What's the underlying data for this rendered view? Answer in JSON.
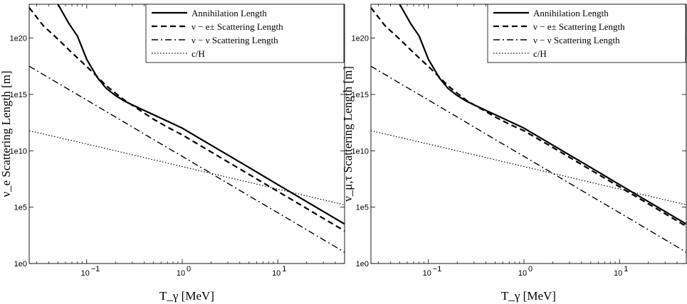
{
  "chart_data": [
    {
      "type": "line",
      "xlabel": "T_γ [MeV]",
      "ylabel": "ν_e Scattering Length [m]",
      "x_scale": "log",
      "y_scale": "log",
      "xlim": [
        0.025,
        50
      ],
      "ylim": [
        1,
        1e+23
      ],
      "x_ticks": [
        {
          "v": 0.1,
          "m": "10",
          "e": "−1"
        },
        {
          "v": 1,
          "m": "10",
          "e": "0"
        },
        {
          "v": 10,
          "m": "10",
          "e": "1"
        }
      ],
      "y_ticks": [
        {
          "v": 1,
          "label": "1e0"
        },
        {
          "v": 100000.0,
          "label": "1e5"
        },
        {
          "v": 10000000000.0,
          "label": "1e10"
        },
        {
          "v": 1000000000000000.0,
          "label": "1e15"
        },
        {
          "v": 1e+20,
          "label": "1e20"
        }
      ],
      "legend_position": "top-right",
      "series": [
        {
          "name": "Annihilation Length",
          "style": "solid",
          "x": [
            0.04,
            0.05,
            0.065,
            0.08,
            0.1,
            0.13,
            0.16,
            0.2,
            0.25,
            0.3,
            0.4,
            0.5,
            0.7,
            1,
            2,
            5,
            10,
            20,
            50
          ],
          "y": [
            1.1e+24,
            1e+23,
            2e+21,
            1.5e+20,
            1.3e+18,
            3e+16,
            3500000000000000.0,
            800000000000000.0,
            250000000000000.0,
            120000000000000.0,
            38000000000000.0,
            16000000000000.0,
            4200000000000.0,
            1020000000000.0,
            32000000000.0,
            330000000.0,
            10000000.0,
            310000.0,
            3200.0
          ]
        },
        {
          "name": "ν − e± Scattering Length",
          "style": "dashed",
          "x": [
            0.025,
            0.035,
            0.05,
            0.07,
            0.1,
            0.13,
            0.16,
            0.2,
            0.25,
            0.3,
            0.4,
            0.5,
            0.7,
            1,
            2,
            5,
            10,
            20,
            50
          ],
          "y": [
            5e+22,
            1.3e+21,
            8e+19,
            5e+18,
            3e+17,
            3.5e+16,
            6000000000000000.0,
            1300000000000000.0,
            300000000000000.0,
            110000000000000.0,
            22000000000000.0,
            6300000000000.0,
            1250000000000.0,
            260000000000.0,
            8000000000.0,
            80000000.0,
            2500000.0,
            77000.0,
            780.0
          ]
        },
        {
          "name": "ν − ν Scattering Length",
          "style": "dashdot",
          "x": [
            0.025,
            0.05,
            0.1,
            0.2,
            0.5,
            1,
            2,
            5,
            10,
            20,
            50
          ],
          "y": [
            3.2e+17,
            1e+16,
            320000000000000.0,
            10000000000000.0,
            100000000000.0,
            3200000000.0,
            100000000.0,
            1000000.0,
            32000.0,
            1000.0,
            10.0
          ]
        },
        {
          "name": "c/H",
          "style": "dotted",
          "x": [
            0.025,
            0.1,
            1,
            10,
            50
          ],
          "y": [
            600000000000.0,
            40000000000.0,
            400000000.0,
            4000000.0,
            160000.0
          ]
        }
      ]
    },
    {
      "type": "line",
      "xlabel": "T_γ [MeV]",
      "ylabel": "ν_μ,τ Scattering Length [m]",
      "x_scale": "log",
      "y_scale": "log",
      "xlim": [
        0.025,
        50
      ],
      "ylim": [
        1,
        1e+23
      ],
      "x_ticks": [
        {
          "v": 0.1,
          "m": "10",
          "e": "−1"
        },
        {
          "v": 1,
          "m": "10",
          "e": "0"
        },
        {
          "v": 10,
          "m": "10",
          "e": "1"
        }
      ],
      "y_ticks": [
        {
          "v": 1,
          "label": "1e0"
        },
        {
          "v": 100000.0,
          "label": "1e5"
        },
        {
          "v": 10000000000.0,
          "label": "1e10"
        },
        {
          "v": 1000000000000000.0,
          "label": "1e15"
        },
        {
          "v": 1e+20,
          "label": "1e20"
        }
      ],
      "legend_position": "top-right",
      "series": [
        {
          "name": "Annihilation Length",
          "style": "solid",
          "x": [
            0.04,
            0.05,
            0.065,
            0.08,
            0.1,
            0.13,
            0.16,
            0.2,
            0.25,
            0.3,
            0.4,
            0.5,
            0.7,
            1,
            2,
            5,
            10,
            20,
            50
          ],
          "y": [
            1.1e+24,
            1e+23,
            2e+21,
            1.5e+20,
            1.3e+18,
            3e+16,
            3500000000000000.0,
            800000000000000.0,
            250000000000000.0,
            120000000000000.0,
            38000000000000.0,
            16000000000000.0,
            4200000000000.0,
            1020000000000.0,
            32000000000.0,
            330000000.0,
            10000000.0,
            310000.0,
            3200.0
          ]
        },
        {
          "name": "ν − e± Scattering Length",
          "style": "dashed",
          "x": [
            0.025,
            0.035,
            0.05,
            0.07,
            0.1,
            0.13,
            0.16,
            0.2,
            0.25,
            0.3,
            0.4,
            0.5,
            0.7,
            1,
            2,
            5,
            10,
            20,
            50
          ],
          "y": [
            5e+22,
            1.3e+21,
            8e+19,
            5e+18,
            3e+17,
            3.5e+16,
            6000000000000000.0,
            1300000000000000.0,
            300000000000000.0,
            120000000000000.0,
            30000000000000.0,
            10000000000000.0,
            2300000000000.0,
            600000000000.0,
            20000000000.0,
            200000000.0,
            6300000.0,
            200000.0,
            2000.0
          ]
        },
        {
          "name": "ν − ν Scattering Length",
          "style": "dashdot",
          "x": [
            0.025,
            0.05,
            0.1,
            0.2,
            0.5,
            1,
            2,
            5,
            10,
            20,
            50
          ],
          "y": [
            3.2e+17,
            1e+16,
            320000000000000.0,
            10000000000000.0,
            100000000000.0,
            3200000000.0,
            100000000.0,
            1000000.0,
            32000.0,
            1000.0,
            10.0
          ]
        },
        {
          "name": "c/H",
          "style": "dotted",
          "x": [
            0.025,
            0.1,
            1,
            10,
            50
          ],
          "y": [
            600000000000.0,
            40000000000.0,
            400000000.0,
            4000000.0,
            160000.0
          ]
        }
      ]
    }
  ]
}
